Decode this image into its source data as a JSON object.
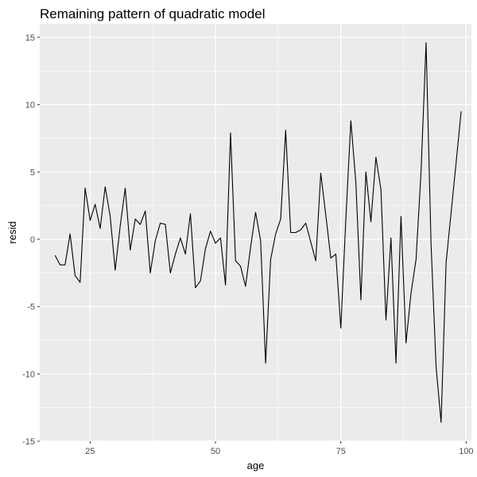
{
  "chart_data": {
    "type": "line",
    "title": "Remaining pattern of quadratic model",
    "xlabel": "age",
    "ylabel": "resid",
    "xlim": [
      14.95,
      101.05
    ],
    "ylim": [
      -15.0,
      16.0
    ],
    "x_ticks": [
      25,
      50,
      75,
      100
    ],
    "y_ticks": [
      -15,
      -10,
      -5,
      0,
      5,
      10,
      15
    ],
    "grid": true,
    "panel_background": "#ebebeb",
    "grid_color": "#ffffff",
    "line_color": "#000000",
    "x": [
      18,
      19,
      20,
      21,
      22,
      23,
      24,
      25,
      26,
      27,
      28,
      29,
      30,
      31,
      32,
      33,
      34,
      35,
      36,
      37,
      38,
      39,
      40,
      41,
      42,
      43,
      44,
      45,
      46,
      47,
      48,
      49,
      50,
      51,
      52,
      53,
      54,
      55,
      56,
      57,
      58,
      59,
      60,
      61,
      62,
      63,
      64,
      65,
      66,
      67,
      68,
      69,
      70,
      71,
      72,
      73,
      74,
      75,
      76,
      77,
      78,
      79,
      80,
      81,
      82,
      83,
      84,
      85,
      86,
      87,
      88,
      89,
      90,
      91,
      92,
      93,
      94,
      95,
      96,
      97,
      98,
      99
    ],
    "y": [
      -1.2,
      -1.9,
      -1.9,
      0.4,
      -2.7,
      -3.2,
      3.8,
      1.4,
      2.6,
      0.8,
      3.9,
      1.7,
      -2.3,
      1.0,
      3.8,
      -0.8,
      1.5,
      1.1,
      2.1,
      -2.5,
      -0.1,
      1.2,
      1.1,
      -2.5,
      -1.1,
      0.1,
      -1.1,
      1.9,
      -3.6,
      -3.1,
      -0.7,
      0.6,
      -0.3,
      0.1,
      -3.4,
      7.9,
      -1.6,
      -2.0,
      -3.5,
      -0.6,
      2.0,
      -0.1,
      -9.2,
      -1.5,
      0.4,
      1.5,
      8.1,
      0.5,
      0.5,
      0.7,
      1.2,
      -0.2,
      -1.6,
      4.9,
      1.8,
      -1.4,
      -1.1,
      -6.6,
      1.5,
      8.8,
      4.2,
      -4.5,
      5.0,
      1.3,
      6.1,
      3.7,
      -6.0,
      0.1,
      -9.2,
      1.7,
      -7.7,
      -4.0,
      -1.5,
      5.0,
      14.6,
      -0.4,
      -9.5,
      -13.6,
      -1.7,
      2.0,
      5.7,
      9.5
    ]
  }
}
